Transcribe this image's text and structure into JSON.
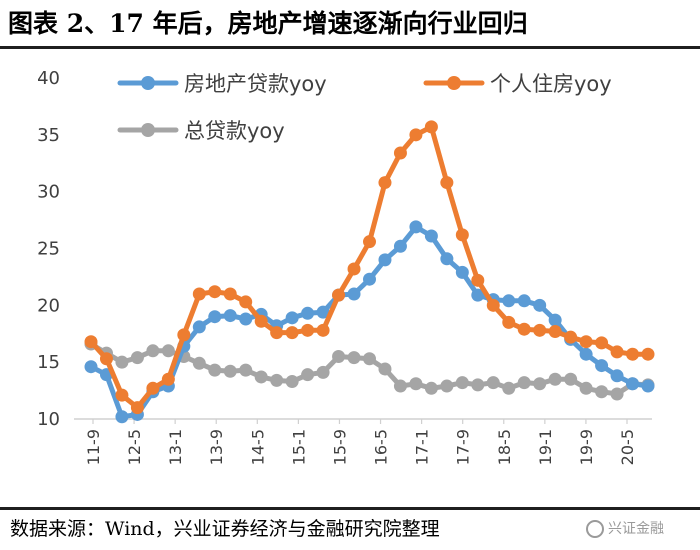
{
  "title": "图表 2、17 年后，房地产增速逐渐向行业回归",
  "source": "数据来源：Wind，兴业证券经济与金融研究院整理",
  "watermark": "兴证金融",
  "chart_data": {
    "type": "line",
    "y_ticks": [
      "10",
      "15",
      "20",
      "25",
      "30",
      "35",
      "40"
    ],
    "ylim": [
      10,
      40
    ],
    "x_tick_labels": [
      "11-9",
      "12-5",
      "13-1",
      "13-9",
      "14-5",
      "15-1",
      "15-9",
      "16-5",
      "17-1",
      "17-9",
      "18-5",
      "19-1",
      "19-9",
      "20-5"
    ],
    "grid": false,
    "legend_position": "top",
    "series": [
      {
        "name": "房地产贷款yoy",
        "color": "#5b9bd5",
        "values": [
          14.6,
          13.9,
          10.2,
          10.4,
          12.4,
          12.9,
          16.4,
          18.1,
          19.0,
          19.1,
          18.8,
          19.2,
          18.2,
          18.9,
          19.3,
          19.4,
          20.9,
          21.0,
          22.3,
          24.0,
          25.2,
          26.9,
          26.1,
          24.1,
          22.9,
          20.9,
          20.5,
          20.4,
          20.4,
          20.0,
          18.7,
          17.0,
          15.7,
          14.7,
          13.8,
          13.1,
          12.9
        ]
      },
      {
        "name": "个人住房yoy",
        "color": "#ed7d31",
        "values": [
          16.8,
          15.3,
          12.1,
          11.0,
          12.7,
          13.5,
          17.4,
          21.0,
          21.2,
          21.0,
          20.3,
          18.6,
          17.6,
          17.6,
          17.8,
          17.8,
          20.9,
          23.2,
          25.6,
          30.8,
          33.4,
          35.0,
          35.7,
          30.8,
          26.2,
          22.2,
          20.0,
          18.5,
          17.9,
          17.8,
          17.7,
          17.2,
          16.8,
          16.7,
          15.9,
          15.7,
          15.7
        ]
      },
      {
        "name": "总贷款yoy",
        "color": "#a5a5a5",
        "values": [
          16.6,
          15.8,
          15.0,
          15.4,
          16.0,
          16.0,
          15.5,
          14.9,
          14.3,
          14.2,
          14.3,
          13.7,
          13.4,
          13.3,
          13.9,
          14.1,
          15.5,
          15.4,
          15.3,
          14.4,
          12.9,
          13.1,
          12.7,
          12.9,
          13.2,
          13.0,
          13.2,
          12.7,
          13.2,
          13.1,
          13.5,
          13.5,
          12.7,
          12.4,
          12.2,
          13.1,
          13.0
        ]
      }
    ]
  }
}
